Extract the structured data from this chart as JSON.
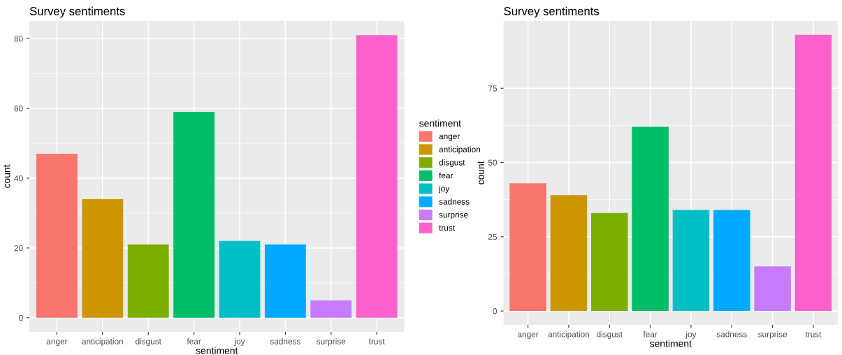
{
  "chart_data": [
    {
      "type": "bar",
      "title": "Survey sentiments",
      "xlabel": "sentiment",
      "ylabel": "count",
      "legend_title": "sentiment",
      "categories": [
        "anger",
        "anticipation",
        "disgust",
        "fear",
        "joy",
        "sadness",
        "surprise",
        "trust"
      ],
      "series": [
        {
          "name": "anger",
          "color": "#f8766d",
          "values": [
            47,
            null,
            null,
            null,
            null,
            null,
            null,
            null
          ]
        },
        {
          "name": "anticipation",
          "color": "#cd9600",
          "values": [
            null,
            34,
            null,
            null,
            null,
            null,
            null,
            null
          ]
        },
        {
          "name": "disgust",
          "color": "#7cae00",
          "values": [
            null,
            null,
            21,
            null,
            null,
            null,
            null,
            null
          ]
        },
        {
          "name": "fear",
          "color": "#00be67",
          "values": [
            null,
            null,
            null,
            59,
            null,
            null,
            null,
            null
          ]
        },
        {
          "name": "joy",
          "color": "#00bfc4",
          "values": [
            null,
            null,
            null,
            null,
            22,
            null,
            null,
            null
          ]
        },
        {
          "name": "sadness",
          "color": "#00a9ff",
          "values": [
            null,
            null,
            null,
            null,
            null,
            21,
            null,
            null
          ]
        },
        {
          "name": "surprise",
          "color": "#c77cff",
          "values": [
            null,
            null,
            null,
            null,
            null,
            null,
            5,
            null
          ]
        },
        {
          "name": "trust",
          "color": "#ff61cc",
          "values": [
            null,
            null,
            null,
            null,
            null,
            null,
            null,
            81
          ]
        }
      ],
      "ylim": [
        -4.05,
        85.05
      ],
      "yticks": [
        0,
        20,
        40,
        60,
        80
      ],
      "grid": true,
      "legend": "right"
    },
    {
      "type": "bar",
      "title": "Survey sentiments",
      "xlabel": "sentiment",
      "ylabel": "count",
      "categories": [
        "anger",
        "anticipation",
        "disgust",
        "fear",
        "joy",
        "sadness",
        "surprise",
        "trust"
      ],
      "values": [
        43,
        39,
        33,
        62,
        34,
        34,
        15,
        93
      ],
      "colors": [
        "#f8766d",
        "#cd9600",
        "#7cae00",
        "#00be67",
        "#00bfc4",
        "#00a9ff",
        "#c77cff",
        "#ff61cc"
      ],
      "ylim": [
        -4.65,
        97.65
      ],
      "yticks": [
        0,
        25,
        50,
        75
      ],
      "grid": true
    }
  ]
}
